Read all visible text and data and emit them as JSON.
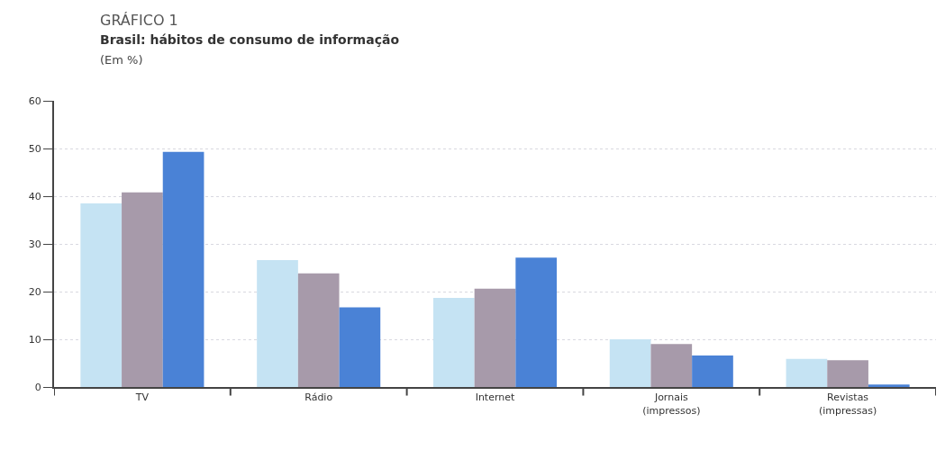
{
  "chart_data": {
    "type": "bar",
    "title": "Brasil: hábitos de consumo de informação",
    "subtitle": "(Em %)",
    "annotations": [
      "GRÁFICO 1"
    ],
    "categories": [
      "TV",
      "Rádio",
      "Internet",
      "Jornais\n(impressos)",
      "Revistas\n(impressas)"
    ],
    "series": [
      {
        "color": "#c5e3f3",
        "values": [
          38.5,
          26.6,
          18.7,
          10.0,
          5.9
        ]
      },
      {
        "color": "#a79aaa",
        "values": [
          40.8,
          23.8,
          20.6,
          9.0,
          5.6
        ]
      },
      {
        "color": "#4a82d6",
        "values": [
          49.3,
          16.7,
          27.1,
          6.6,
          0.5
        ]
      }
    ],
    "ylim": [
      0,
      60
    ],
    "yticks": [
      0,
      10,
      20,
      30,
      40,
      50,
      60
    ],
    "grid": "y"
  }
}
